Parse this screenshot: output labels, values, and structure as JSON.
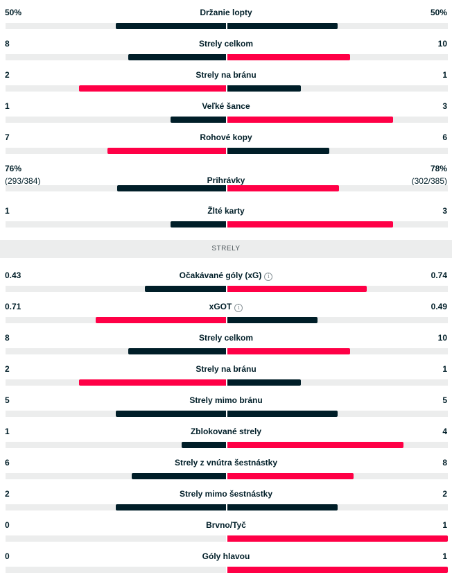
{
  "colors": {
    "dark": "#001e28",
    "red": "#ff0046",
    "track": "#eceded"
  },
  "section_title": "STRELY",
  "top_stats": [
    {
      "label": "Držanie lopty",
      "left": "50%",
      "right": "50%",
      "lnum": 50,
      "rnum": 50,
      "max": 100,
      "leader": "equal"
    },
    {
      "label": "Strely celkom",
      "left": "8",
      "right": "10",
      "lnum": 8,
      "rnum": 10,
      "max": 18,
      "leader": "right"
    },
    {
      "label": "Strely na bránu",
      "left": "2",
      "right": "1",
      "lnum": 2,
      "rnum": 1,
      "max": 3,
      "leader": "left"
    },
    {
      "label": "Veľké šance",
      "left": "1",
      "right": "3",
      "lnum": 1,
      "rnum": 3,
      "max": 4,
      "leader": "right"
    },
    {
      "label": "Rohové kopy",
      "left": "7",
      "right": "6",
      "lnum": 7,
      "rnum": 6,
      "max": 13,
      "leader": "left"
    },
    {
      "label": "Prihrávky",
      "left": "76%",
      "left_sub": "(293/384)",
      "right": "78%",
      "right_sub": "(302/385)",
      "lnum": 76,
      "rnum": 78,
      "max": 154,
      "leader": "right"
    },
    {
      "label": "Žlté karty",
      "left": "1",
      "right": "3",
      "lnum": 1,
      "rnum": 3,
      "max": 4,
      "leader": "right"
    }
  ],
  "shot_stats": [
    {
      "label": "Očakávané góly (xG)",
      "info": "i",
      "left": "0.43",
      "right": "0.74",
      "lnum": 0.43,
      "rnum": 0.74,
      "max": 1.17,
      "leader": "right"
    },
    {
      "label": "xGOT",
      "info": "i",
      "left": "0.71",
      "right": "0.49",
      "lnum": 0.71,
      "rnum": 0.49,
      "max": 1.2,
      "leader": "left"
    },
    {
      "label": "Strely celkom",
      "left": "8",
      "right": "10",
      "lnum": 8,
      "rnum": 10,
      "max": 18,
      "leader": "right"
    },
    {
      "label": "Strely na bránu",
      "left": "2",
      "right": "1",
      "lnum": 2,
      "rnum": 1,
      "max": 3,
      "leader": "left"
    },
    {
      "label": "Strely mimo bránu",
      "left": "5",
      "right": "5",
      "lnum": 5,
      "rnum": 5,
      "max": 10,
      "leader": "equal"
    },
    {
      "label": "Zblokované strely",
      "left": "1",
      "right": "4",
      "lnum": 1,
      "rnum": 4,
      "max": 5,
      "leader": "right"
    },
    {
      "label": "Strely z vnútra šestnástky",
      "left": "6",
      "right": "8",
      "lnum": 6,
      "rnum": 8,
      "max": 14,
      "leader": "right"
    },
    {
      "label": "Strely mimo šestnástky",
      "left": "2",
      "right": "2",
      "lnum": 2,
      "rnum": 2,
      "max": 4,
      "leader": "equal"
    },
    {
      "label": "Brvno/Tyč",
      "left": "0",
      "right": "1",
      "lnum": 0,
      "rnum": 1,
      "max": 1,
      "leader": "right"
    },
    {
      "label": "Góly hlavou",
      "left": "0",
      "right": "1",
      "lnum": 0,
      "rnum": 1,
      "max": 1,
      "leader": "right"
    }
  ]
}
